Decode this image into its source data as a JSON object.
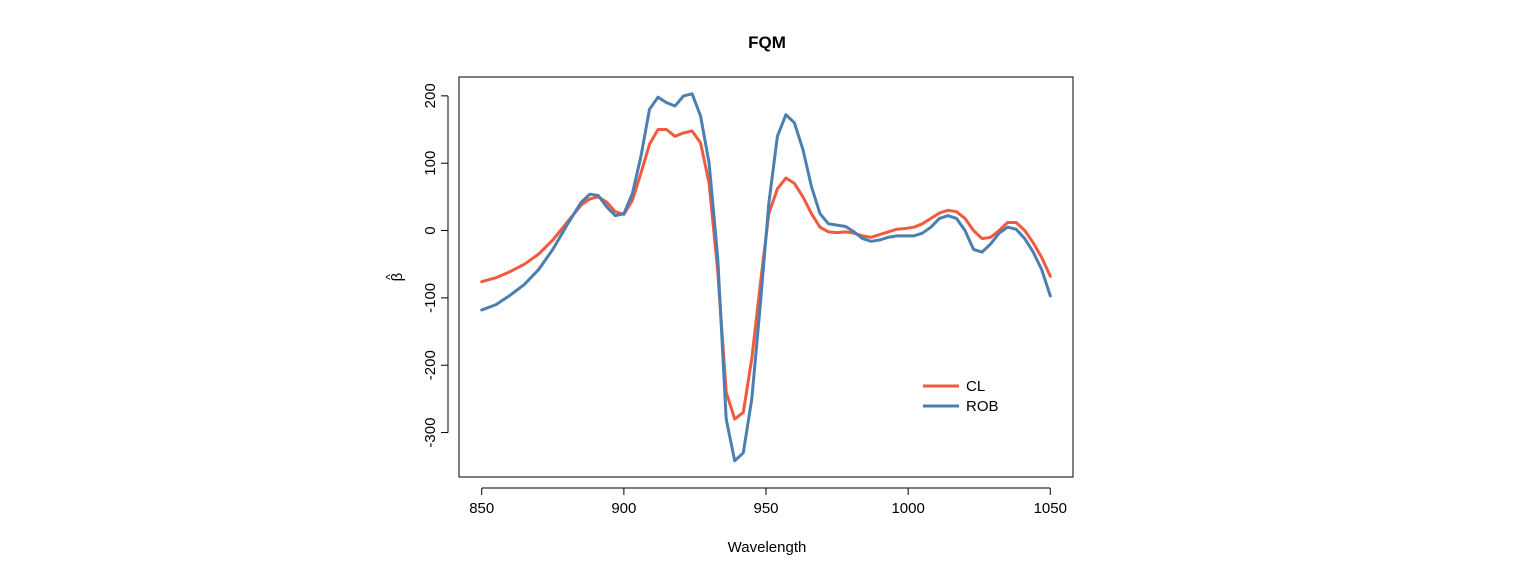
{
  "chart_data": {
    "type": "line",
    "title": "FQM",
    "xlabel": "Wavelength",
    "ylabel": "β",
    "ylabel_hat": "^",
    "xlim": [
      842,
      1058
    ],
    "ylim": [
      -366,
      228
    ],
    "xticks": [
      850,
      900,
      950,
      1000,
      1050
    ],
    "yticks": [
      -300,
      -200,
      -100,
      0,
      100,
      200
    ],
    "grid": false,
    "legend_position": "bottom-right",
    "series": [
      {
        "name": "CL",
        "color": "#F05A3F",
        "x": [
          850,
          855,
          860,
          865,
          870,
          875,
          880,
          885,
          888,
          891,
          894,
          897,
          900,
          903,
          906,
          909,
          912,
          915,
          918,
          921,
          924,
          927,
          930,
          933,
          936,
          939,
          942,
          945,
          948,
          951,
          954,
          957,
          960,
          963,
          966,
          969,
          972,
          975,
          978,
          981,
          984,
          987,
          990,
          993,
          996,
          999,
          1002,
          1005,
          1008,
          1011,
          1014,
          1017,
          1020,
          1023,
          1026,
          1029,
          1032,
          1035,
          1038,
          1041,
          1044,
          1047,
          1050
        ],
        "y": [
          -76,
          -70,
          -61,
          -50,
          -35,
          -14,
          12,
          38,
          47,
          50,
          42,
          28,
          24,
          45,
          85,
          128,
          150,
          150,
          140,
          145,
          148,
          130,
          70,
          -60,
          -240,
          -280,
          -270,
          -190,
          -80,
          25,
          62,
          78,
          70,
          50,
          25,
          5,
          -2,
          -3,
          -2,
          -4,
          -8,
          -10,
          -6,
          -2,
          2,
          3,
          5,
          10,
          18,
          26,
          30,
          28,
          18,
          0,
          -12,
          -10,
          0,
          12,
          12,
          0,
          -18,
          -40,
          -68
        ]
      },
      {
        "name": "ROB",
        "color": "#4A7FB0",
        "x": [
          850,
          855,
          860,
          865,
          870,
          875,
          880,
          885,
          888,
          891,
          894,
          897,
          900,
          903,
          906,
          909,
          912,
          915,
          918,
          921,
          924,
          927,
          930,
          933,
          936,
          939,
          942,
          945,
          948,
          951,
          954,
          957,
          960,
          963,
          966,
          969,
          972,
          975,
          978,
          981,
          984,
          987,
          990,
          993,
          996,
          999,
          1002,
          1005,
          1008,
          1011,
          1014,
          1017,
          1020,
          1023,
          1026,
          1029,
          1032,
          1035,
          1038,
          1041,
          1044,
          1047,
          1050
        ],
        "y": [
          -118,
          -110,
          -96,
          -80,
          -58,
          -28,
          8,
          42,
          54,
          52,
          35,
          22,
          25,
          55,
          110,
          180,
          198,
          190,
          185,
          200,
          203,
          170,
          100,
          -40,
          -280,
          -342,
          -330,
          -250,
          -110,
          40,
          140,
          172,
          160,
          120,
          65,
          25,
          10,
          8,
          6,
          -2,
          -12,
          -16,
          -14,
          -10,
          -8,
          -8,
          -8,
          -4,
          5,
          18,
          22,
          18,
          0,
          -28,
          -32,
          -20,
          -4,
          5,
          2,
          -12,
          -32,
          -58,
          -97
        ]
      }
    ]
  }
}
